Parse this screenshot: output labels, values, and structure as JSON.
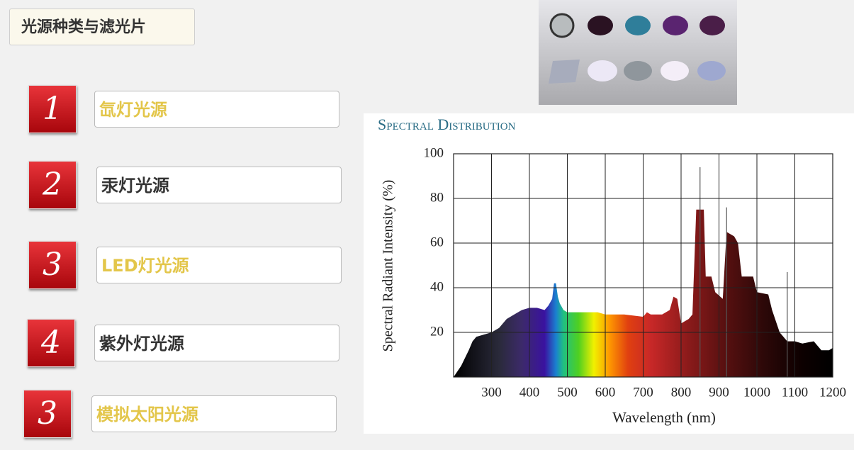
{
  "header": {
    "title": "光源种类与滤光片"
  },
  "items": [
    {
      "number": "1",
      "label": "氙灯光源",
      "tone": "yellow"
    },
    {
      "number": "2",
      "label": "汞灯光源",
      "tone": "dark"
    },
    {
      "number": "3",
      "label": "LED灯光源",
      "tone": "yellow"
    },
    {
      "number": "4",
      "label": "紫外灯光源",
      "tone": "dark"
    },
    {
      "number": "3",
      "label": "模拟太阳光源",
      "tone": "yellow"
    }
  ],
  "chart_data": {
    "type": "area",
    "title": "Spectral Distribution",
    "y_label": "Spectral Radiant Intensity (%)",
    "x_label": "Wavelength (nm)",
    "x": [
      200,
      220,
      240,
      250,
      260,
      280,
      300,
      320,
      340,
      360,
      380,
      400,
      420,
      440,
      450,
      460,
      465,
      470,
      475,
      480,
      490,
      500,
      550,
      580,
      600,
      650,
      700,
      710,
      720,
      750,
      770,
      780,
      790,
      800,
      820,
      830,
      840,
      860,
      865,
      880,
      890,
      910,
      920,
      940,
      950,
      960,
      990,
      1000,
      1030,
      1040,
      1060,
      1080,
      1100,
      1120,
      1150,
      1170,
      1190,
      1200
    ],
    "values": [
      0,
      5,
      12,
      16,
      18,
      19,
      20,
      22,
      26,
      28,
      30,
      31,
      31,
      30,
      32,
      35,
      42,
      42,
      36,
      33,
      30,
      29,
      29,
      29,
      28,
      28,
      27,
      29,
      28,
      28,
      30,
      36,
      35,
      24,
      26,
      28,
      75,
      75,
      45,
      45,
      38,
      35,
      65,
      63,
      60,
      45,
      45,
      38,
      37,
      30,
      20,
      16,
      16,
      15,
      16,
      12,
      12,
      13
    ],
    "spike_x": [
      850,
      920,
      1080
    ],
    "spike_values": [
      94,
      76,
      47
    ],
    "xlim": [
      200,
      1200
    ],
    "ylim": [
      0,
      100
    ],
    "xticks": [
      300,
      400,
      500,
      600,
      700,
      800,
      900,
      1000,
      1100,
      1200
    ],
    "yticks": [
      20,
      40,
      60,
      80,
      100
    ],
    "grid": true
  }
}
